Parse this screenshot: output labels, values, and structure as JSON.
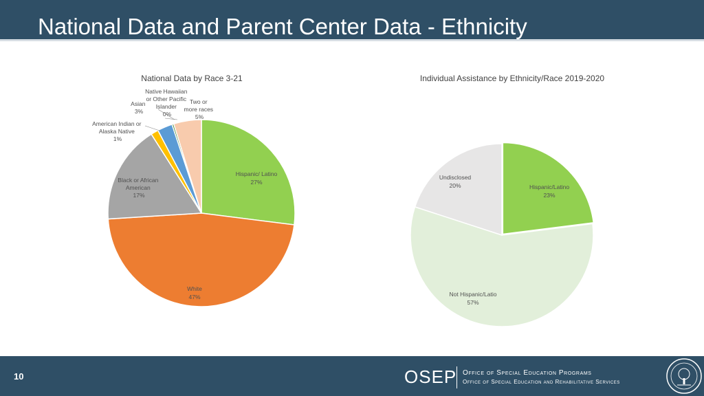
{
  "slide": {
    "title": "National Data and Parent Center Data - Ethnicity",
    "number": "10"
  },
  "footer": {
    "osep": "OSEP",
    "office_line1": "Office of Special Education Programs",
    "office_line2": "Office of Special Education and Rehabilitative Services"
  },
  "chart_data": [
    {
      "type": "pie",
      "title": "National Data by Race 3-21",
      "start": "12 o'clock, clockwise",
      "slices": [
        {
          "label": "Hispanic/ Latino",
          "percent_label": "27%",
          "value": 27,
          "color": "#92d050"
        },
        {
          "label": "White",
          "percent_label": "47%",
          "value": 47,
          "color": "#ed7d31"
        },
        {
          "label": "Black or African American",
          "percent_label": "17%",
          "value": 17,
          "color": "#a5a5a5"
        },
        {
          "label": "American Indian or Alaska Native",
          "percent_label": "1%",
          "value": 1.3,
          "color": "#ffc000"
        },
        {
          "label": "Asian",
          "percent_label": "3%",
          "value": 2.6,
          "color": "#5b9bd5"
        },
        {
          "label": "Native Hawaiian or Other Pacific Islander",
          "percent_label": "0%",
          "value": 0.3,
          "color": "#4c8c3a"
        },
        {
          "label": "Two or more races",
          "percent_label": "5%",
          "value": 4.8,
          "color": "#f8cbad"
        }
      ]
    },
    {
      "type": "pie",
      "title": "Individual Assistance by Ethnicity/Race 2019-2020",
      "start": "12 o'clock, clockwise",
      "slices": [
        {
          "label": "Hispanic/Latino",
          "percent_label": "23%",
          "value": 23,
          "color": "#92d050"
        },
        {
          "label": "Not Hispanic/Latio",
          "percent_label": "57%",
          "value": 57,
          "color": "#e2efda"
        },
        {
          "label": "Undisclosed",
          "percent_label": "20%",
          "value": 20,
          "color": "#e7e6e6"
        }
      ]
    }
  ]
}
